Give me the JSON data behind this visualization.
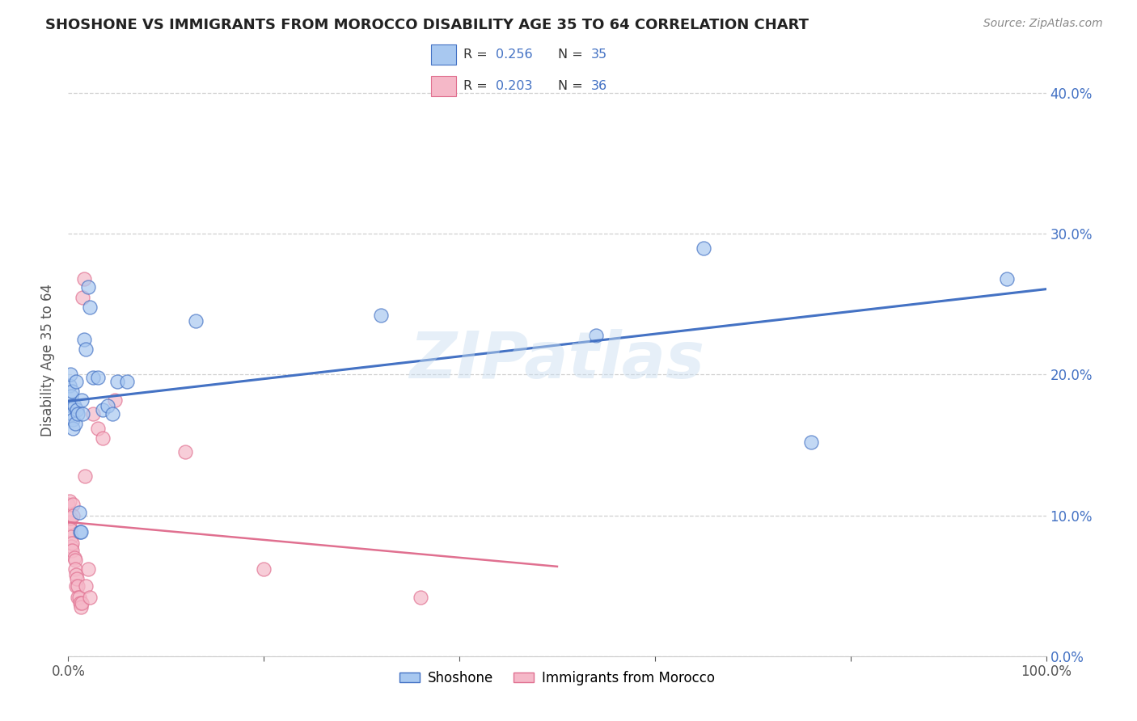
{
  "title": "SHOSHONE VS IMMIGRANTS FROM MOROCCO DISABILITY AGE 35 TO 64 CORRELATION CHART",
  "source": "Source: ZipAtlas.com",
  "ylabel": "Disability Age 35 to 64",
  "watermark": "ZIPatlas",
  "shoshone_R": "0.256",
  "shoshone_N": "35",
  "morocco_R": "0.203",
  "morocco_N": "36",
  "shoshone_color": "#a8c8f0",
  "morocco_color": "#f5b8c8",
  "shoshone_line_color": "#4472c4",
  "morocco_line_color": "#e07090",
  "shoshone_scatter": [
    [
      0.001,
      0.192
    ],
    [
      0.002,
      0.2
    ],
    [
      0.003,
      0.185
    ],
    [
      0.003,
      0.178
    ],
    [
      0.004,
      0.188
    ],
    [
      0.004,
      0.172
    ],
    [
      0.005,
      0.168
    ],
    [
      0.005,
      0.162
    ],
    [
      0.006,
      0.178
    ],
    [
      0.007,
      0.165
    ],
    [
      0.008,
      0.195
    ],
    [
      0.009,
      0.175
    ],
    [
      0.01,
      0.172
    ],
    [
      0.011,
      0.102
    ],
    [
      0.012,
      0.088
    ],
    [
      0.013,
      0.088
    ],
    [
      0.014,
      0.182
    ],
    [
      0.015,
      0.172
    ],
    [
      0.016,
      0.225
    ],
    [
      0.018,
      0.218
    ],
    [
      0.02,
      0.262
    ],
    [
      0.022,
      0.248
    ],
    [
      0.025,
      0.198
    ],
    [
      0.03,
      0.198
    ],
    [
      0.035,
      0.175
    ],
    [
      0.04,
      0.178
    ],
    [
      0.045,
      0.172
    ],
    [
      0.05,
      0.195
    ],
    [
      0.06,
      0.195
    ],
    [
      0.13,
      0.238
    ],
    [
      0.32,
      0.242
    ],
    [
      0.54,
      0.228
    ],
    [
      0.65,
      0.29
    ],
    [
      0.76,
      0.152
    ],
    [
      0.96,
      0.268
    ]
  ],
  "morocco_scatter": [
    [
      0.0,
      0.108
    ],
    [
      0.001,
      0.11
    ],
    [
      0.001,
      0.095
    ],
    [
      0.002,
      0.098
    ],
    [
      0.002,
      0.09
    ],
    [
      0.003,
      0.085
    ],
    [
      0.003,
      0.078
    ],
    [
      0.004,
      0.08
    ],
    [
      0.004,
      0.075
    ],
    [
      0.005,
      0.108
    ],
    [
      0.005,
      0.1
    ],
    [
      0.006,
      0.07
    ],
    [
      0.007,
      0.068
    ],
    [
      0.007,
      0.062
    ],
    [
      0.008,
      0.058
    ],
    [
      0.008,
      0.05
    ],
    [
      0.009,
      0.055
    ],
    [
      0.01,
      0.05
    ],
    [
      0.01,
      0.042
    ],
    [
      0.011,
      0.042
    ],
    [
      0.012,
      0.038
    ],
    [
      0.013,
      0.035
    ],
    [
      0.014,
      0.038
    ],
    [
      0.015,
      0.255
    ],
    [
      0.016,
      0.268
    ],
    [
      0.017,
      0.128
    ],
    [
      0.018,
      0.05
    ],
    [
      0.02,
      0.062
    ],
    [
      0.022,
      0.042
    ],
    [
      0.025,
      0.172
    ],
    [
      0.03,
      0.162
    ],
    [
      0.035,
      0.155
    ],
    [
      0.048,
      0.182
    ],
    [
      0.12,
      0.145
    ],
    [
      0.2,
      0.062
    ],
    [
      0.36,
      0.042
    ]
  ],
  "xlim": [
    0.0,
    1.0
  ],
  "ylim": [
    0.0,
    0.42
  ],
  "yticks": [
    0.0,
    0.1,
    0.2,
    0.3,
    0.4
  ],
  "yticklabels_right": [
    "0.0%",
    "10.0%",
    "20.0%",
    "30.0%",
    "40.0%"
  ],
  "legend_label1": "Shoshone",
  "legend_label2": "Immigrants from Morocco",
  "background_color": "#ffffff",
  "grid_color": "#d0d0d0",
  "title_color": "#222222",
  "source_color": "#888888",
  "axis_color": "#555555",
  "right_axis_color": "#4472c4"
}
